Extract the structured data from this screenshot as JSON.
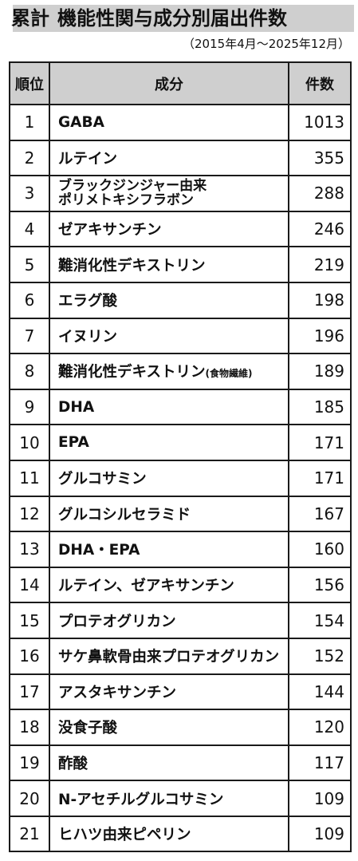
{
  "header": {
    "title_main": "累計",
    "title_rest": "機能性関与成分別届出件数",
    "subtitle": "（2015年4月～2025年12月）"
  },
  "table": {
    "columns": [
      "順位",
      "成分",
      "件数"
    ],
    "rows": [
      {
        "rank": "1",
        "name": "GABA",
        "count": "1013"
      },
      {
        "rank": "2",
        "name": "ルテイン",
        "count": "355"
      },
      {
        "rank": "3",
        "name": "ブラックジンジャー由来",
        "name2": "ポリメトキシフラボン",
        "count": "288"
      },
      {
        "rank": "4",
        "name": "ゼアキサンチン",
        "count": "246"
      },
      {
        "rank": "5",
        "name": "難消化性デキストリン",
        "count": "219"
      },
      {
        "rank": "6",
        "name": "エラグ酸",
        "count": "198"
      },
      {
        "rank": "7",
        "name": "イヌリン",
        "count": "196"
      },
      {
        "rank": "8",
        "name": "難消化性デキストリン",
        "note": "(食物繊維)",
        "count": "189"
      },
      {
        "rank": "9",
        "name": "DHA",
        "count": "185"
      },
      {
        "rank": "10",
        "name": "EPA",
        "count": "171"
      },
      {
        "rank": "11",
        "name": "グルコサミン",
        "count": "171"
      },
      {
        "rank": "12",
        "name": "グルコシルセラミド",
        "count": "167"
      },
      {
        "rank": "13",
        "name": "DHA・EPA",
        "count": "160"
      },
      {
        "rank": "14",
        "name": "ルテイン、ゼアキサンチン",
        "count": "156"
      },
      {
        "rank": "15",
        "name": "プロテオグリカン",
        "count": "154"
      },
      {
        "rank": "16",
        "name": "サケ鼻軟骨由来プロテオグリカン",
        "count": "152"
      },
      {
        "rank": "17",
        "name": "アスタキサンチン",
        "count": "144"
      },
      {
        "rank": "18",
        "name": "没食子酸",
        "count": "120"
      },
      {
        "rank": "19",
        "name": "酢酸",
        "count": "117"
      },
      {
        "rank": "20",
        "name": "N-アセチルグルコサミン",
        "count": "109"
      },
      {
        "rank": "21",
        "name": "ヒハツ由来ピペリン",
        "count": "109"
      }
    ]
  }
}
